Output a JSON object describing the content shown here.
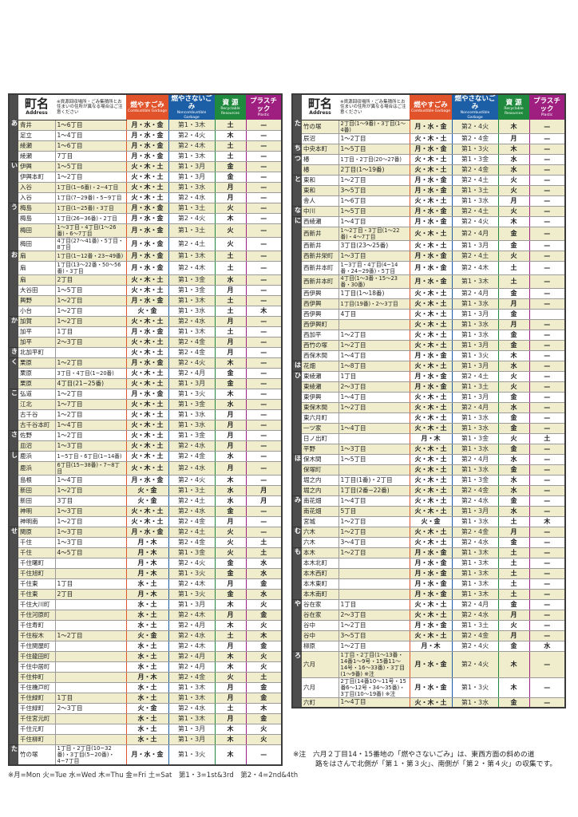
{
  "header": {
    "name_jp": "町名",
    "name_en": "Address",
    "note": "※資源回収場所・ごみ集積所とお住まいの住所が異なる場合はご注意ください",
    "combustible_jp": "燃やすごみ",
    "combustible_en": "Combustible Garbage",
    "noncombustible_jp": "燃やさないごみ",
    "noncombustible_en": "Noncombustible Garbage",
    "recyclable_jp": "資 源",
    "recyclable_en": "Recyclable Resources",
    "plastic_jp": "プラスチック",
    "plastic_en": "Plastic"
  },
  "colors": {
    "combustible": "#e0532b",
    "noncombustible": "#1c5fa6",
    "recyclable": "#1f8a3d",
    "plastic": "#9e1f80",
    "row_highlight": "#efedcb",
    "section_bar": "#4d4d4d"
  },
  "columns": [
    "kana",
    "name",
    "address",
    "combustible",
    "noncombustible",
    "recyclable",
    "plastic"
  ],
  "left_table": [
    [
      "あ",
      "青井",
      "1～6丁目",
      "月・水・金",
      "第1・3木",
      "土",
      "—"
    ],
    [
      "",
      "足立",
      "1～4丁目",
      "月・水・金",
      "第2・4火",
      "木",
      "—"
    ],
    [
      "",
      "綾瀬",
      "1～6丁目",
      "月・水・金",
      "第2・4木",
      "土",
      "—"
    ],
    [
      "",
      "綾瀬",
      "7丁目",
      "月・水・金",
      "第1・3木",
      "土",
      "—"
    ],
    [
      "い",
      "伊興",
      "1～5丁目",
      "火・木・土",
      "第1・3月",
      "金",
      "—"
    ],
    [
      "",
      "伊興本町",
      "1～2丁目",
      "火・木・土",
      "第1・3月",
      "金",
      "—"
    ],
    [
      "",
      "入谷",
      "1丁目(1~6番)・2~4丁目",
      "火・木・土",
      "第1・3水",
      "月",
      "—"
    ],
    [
      "",
      "入谷",
      "1丁目(7~29番)・5~9丁目",
      "火・木・土",
      "第2・4水",
      "月",
      "—"
    ],
    [
      "う",
      "梅島",
      "1丁目(1~25番)・3丁目",
      "月・水・金",
      "第1・3土",
      "火",
      "—"
    ],
    [
      "",
      "梅島",
      "1丁目(26~36番)・2丁目",
      "月・水・金",
      "第2・4火",
      "木",
      "—"
    ],
    [
      "",
      "梅田",
      "1～3丁目・4丁目(1～26番)・6～7丁目",
      "月・水・金",
      "第1・3土",
      "火",
      "—"
    ],
    [
      "",
      "梅田",
      "4丁目(27～41番)・5丁目・8丁目",
      "月・水・金",
      "第2・4土",
      "火",
      "—"
    ],
    [
      "お",
      "扇",
      "1丁目(1~12番・23~49番)",
      "月・水・金",
      "第1・3木",
      "土",
      "—"
    ],
    [
      "",
      "扇",
      "1丁目(13～22番・50～56番)・3丁目",
      "月・水・金",
      "第2・4木",
      "土",
      "—"
    ],
    [
      "",
      "扇",
      "2丁目",
      "火・木・土",
      "第1・3金",
      "水",
      "—"
    ],
    [
      "",
      "大谷田",
      "1～5丁目",
      "火・木・土",
      "第1・3金",
      "月",
      "—"
    ],
    [
      "",
      "興野",
      "1～2丁目",
      "月・水・金",
      "第1・3木",
      "土",
      "—"
    ],
    [
      "",
      "小台",
      "1～2丁目",
      "火・金",
      "第1・3水",
      "土",
      "木"
    ],
    [
      "か",
      "加賀",
      "1～2丁目",
      "火・木・土",
      "第2・4水",
      "月",
      "—"
    ],
    [
      "",
      "加平",
      "1丁目",
      "月・水・金",
      "第1・3木",
      "土",
      "—"
    ],
    [
      "",
      "加平",
      "2～3丁目",
      "火・木・土",
      "第2・4金",
      "月",
      "—"
    ],
    [
      "き",
      "北加平町",
      "",
      "火・木・土",
      "第2・4金",
      "月",
      "—"
    ],
    [
      "く",
      "栗原",
      "1～2丁目",
      "月・水・金",
      "第2・4火",
      "木",
      "—"
    ],
    [
      "",
      "栗原",
      "3丁目・4丁目(1~20番)",
      "火・木・土",
      "第2・4月",
      "金",
      "—"
    ],
    [
      "",
      "栗原",
      "4丁目(21~25番)",
      "火・木・土",
      "第1・3月",
      "金",
      "—"
    ],
    [
      "こ",
      "弘道",
      "1～2丁目",
      "月・水・金",
      "第1・3火",
      "木",
      "—"
    ],
    [
      "",
      "江北",
      "1～7丁目",
      "火・木・土",
      "第1・3金",
      "水",
      "—"
    ],
    [
      "",
      "古千谷",
      "1～2丁目",
      "火・木・土",
      "第1・3水",
      "月",
      "—"
    ],
    [
      "",
      "古千谷本町",
      "1～4丁目",
      "火・木・土",
      "第1・3水",
      "月",
      "—"
    ],
    [
      "さ",
      "佐野",
      "1～2丁目",
      "火・木・土",
      "第1・3金",
      "月",
      "—"
    ],
    [
      "",
      "皿沼",
      "1～3丁目",
      "火・木・土",
      "第2・4水",
      "月",
      "—"
    ],
    [
      "し",
      "鹿浜",
      "1~5丁目・6丁目(1~14番)",
      "火・木・土",
      "第2・4金",
      "水",
      "—"
    ],
    [
      "",
      "鹿浜",
      "6丁目(15~38番)・7~8丁目",
      "火・木・土",
      "第2・4水",
      "月",
      "—"
    ],
    [
      "",
      "島根",
      "1～4丁目",
      "月・水・金",
      "第2・4火",
      "木",
      "—"
    ],
    [
      "",
      "新田",
      "1～2丁目",
      "火・金",
      "第1・3土",
      "水",
      "月"
    ],
    [
      "",
      "新田",
      "3丁目",
      "火・金",
      "第2・4土",
      "水",
      "月"
    ],
    [
      "",
      "神明",
      "1～3丁目",
      "火・木・土",
      "第2・4水",
      "金",
      "—"
    ],
    [
      "",
      "神明南",
      "1～2丁目",
      "火・木・土",
      "第2・4金",
      "月",
      "—"
    ],
    [
      "せ",
      "関原",
      "1～3丁目",
      "月・水・金",
      "第2・4土",
      "火",
      "—"
    ],
    [
      "",
      "千住",
      "1～3丁目",
      "月・木",
      "第2・4金",
      "火",
      "土"
    ],
    [
      "",
      "千住",
      "4～5丁目",
      "月・木",
      "第1・3金",
      "火",
      "土"
    ],
    [
      "",
      "千住曙町",
      "",
      "月・木",
      "第2・4火",
      "金",
      "水"
    ],
    [
      "",
      "千住旭町",
      "",
      "月・木",
      "第1・3火",
      "金",
      "水"
    ],
    [
      "",
      "千住東",
      "1丁目",
      "水・土",
      "第2・4木",
      "月",
      "金"
    ],
    [
      "",
      "千住東",
      "2丁目",
      "月・木",
      "第1・3火",
      "金",
      "水"
    ],
    [
      "",
      "千住大川町",
      "",
      "水・土",
      "第1・3月",
      "木",
      "火"
    ],
    [
      "",
      "千住河原町",
      "",
      "水・土",
      "第2・4木",
      "月",
      "金"
    ],
    [
      "",
      "千住寿町",
      "",
      "水・土",
      "第2・4月",
      "木",
      "火"
    ],
    [
      "",
      "千住桜木",
      "1～2丁目",
      "火・金",
      "第2・4水",
      "土",
      "木"
    ],
    [
      "",
      "千住関屋町",
      "",
      "水・土",
      "第2・4木",
      "月",
      "金"
    ],
    [
      "",
      "千住龍田町",
      "",
      "水・土",
      "第2・4月",
      "木",
      "火"
    ],
    [
      "",
      "千住中居町",
      "",
      "水・土",
      "第2・4月",
      "木",
      "火"
    ],
    [
      "",
      "千住仲町",
      "",
      "月・木",
      "第2・4金",
      "火",
      "土"
    ],
    [
      "",
      "千住橋戸町",
      "",
      "水・土",
      "第1・3木",
      "月",
      "金"
    ],
    [
      "",
      "千住緑町",
      "1丁目",
      "水・土",
      "第1・3木",
      "月",
      "金"
    ],
    [
      "",
      "千住緑町",
      "2～3丁目",
      "火・金",
      "第2・4水",
      "土",
      "木"
    ],
    [
      "",
      "千住宮元町",
      "",
      "水・土",
      "第1・3木",
      "月",
      "金"
    ],
    [
      "",
      "千住元町",
      "",
      "水・土",
      "第1・3月",
      "木",
      "火"
    ],
    [
      "",
      "千住柳町",
      "",
      "水・土",
      "第1・3月",
      "木",
      "火"
    ],
    [
      "た",
      "竹の塚",
      "1丁目・2丁目(10~32番)・3丁目(5~20番)・4~7丁目",
      "月・水・金",
      "第1・3火",
      "木",
      "—"
    ]
  ],
  "right_table": [
    [
      "た",
      "竹の塚",
      "2丁目(1～9番)・3丁目(1～4番)",
      "月・水・金",
      "第2・4火",
      "木",
      "—"
    ],
    [
      "",
      "辰沼",
      "1～2丁目",
      "火・木・土",
      "第2・4金",
      "月",
      "—"
    ],
    [
      "ち",
      "中央本町",
      "1～5丁目",
      "月・水・金",
      "第1・3火",
      "木",
      "—"
    ],
    [
      "つ",
      "椿",
      "1丁目・2丁目(20～27番)",
      "火・木・土",
      "第1・3金",
      "水",
      "—"
    ],
    [
      "",
      "椿",
      "2丁目(1～19番)",
      "火・木・土",
      "第2・4金",
      "水",
      "—"
    ],
    [
      "と",
      "東和",
      "1～2丁目",
      "月・水・金",
      "第2・4土",
      "火",
      "—"
    ],
    [
      "",
      "東和",
      "3～5丁目",
      "月・水・金",
      "第1・3土",
      "火",
      "—"
    ],
    [
      "",
      "舎人",
      "1～6丁目",
      "火・木・土",
      "第1・3水",
      "月",
      "—"
    ],
    [
      "な",
      "中川",
      "1～5丁目",
      "月・水・金",
      "第2・4土",
      "火",
      "—"
    ],
    [
      "に",
      "西綾瀬",
      "1～4丁目",
      "月・水・金",
      "第2・4火",
      "木",
      "—"
    ],
    [
      "",
      "西新井",
      "1～2丁目・3丁目(1～22番)・4～7丁目",
      "火・木・土",
      "第2・4月",
      "金",
      "—"
    ],
    [
      "",
      "西新井",
      "3丁目(23～25番)",
      "火・木・土",
      "第1・3月",
      "金",
      "—"
    ],
    [
      "",
      "西新井栄町",
      "1～3丁目",
      "月・水・金",
      "第2・4土",
      "火",
      "—"
    ],
    [
      "",
      "西新井本町",
      "1~3丁目・4丁目(4~14番・24~29番)・5丁目",
      "月・水・金",
      "第2・4木",
      "土",
      "—"
    ],
    [
      "",
      "西新井本町",
      "4丁目(1～3番・15～23番・30番)",
      "月・水・金",
      "第1・3木",
      "土",
      "—"
    ],
    [
      "",
      "西伊興",
      "1丁目(1～18番)",
      "火・木・土",
      "第2・4月",
      "金",
      "—"
    ],
    [
      "",
      "西伊興",
      "1丁目(19番)・2～3丁目",
      "火・木・土",
      "第1・3水",
      "月",
      "—"
    ],
    [
      "",
      "西伊興",
      "4丁目",
      "火・木・土",
      "第1・3月",
      "金",
      ""
    ],
    [
      "",
      "西伊興町",
      "",
      "火・木・土",
      "第1・3水",
      "月",
      "—"
    ],
    [
      "",
      "西加平",
      "1～2丁目",
      "火・木・土",
      "第1・3水",
      "金",
      "—"
    ],
    [
      "",
      "西竹の塚",
      "1～2丁目",
      "火・木・土",
      "第1・3月",
      "金",
      "—"
    ],
    [
      "",
      "西保木間",
      "1～4丁目",
      "月・水・金",
      "第1・3火",
      "木",
      "—"
    ],
    [
      "は",
      "花畑",
      "1～8丁目",
      "火・木・土",
      "第1・3月",
      "水",
      "—"
    ],
    [
      "ひ",
      "東綾瀬",
      "1丁目",
      "月・水・金",
      "第2・4土",
      "火",
      "—"
    ],
    [
      "",
      "東綾瀬",
      "2～3丁目",
      "月・水・金",
      "第1・3土",
      "火",
      "—"
    ],
    [
      "",
      "東伊興",
      "1～4丁目",
      "火・木・土",
      "第1・3月",
      "金",
      "—"
    ],
    [
      "",
      "東保木間",
      "1～2丁目",
      "火・木・土",
      "第2・4月",
      "水",
      "—"
    ],
    [
      "",
      "東六月町",
      "",
      "火・木・土",
      "第1・3水",
      "金",
      "—"
    ],
    [
      "",
      "一ツ家",
      "1～4丁目",
      "火・木・土",
      "第1・3水",
      "金",
      "—"
    ],
    [
      "",
      "日ノ出町",
      "",
      "月・木",
      "第1・3金",
      "火",
      "土"
    ],
    [
      "",
      "平野",
      "1～3丁目",
      "火・木・土",
      "第1・3水",
      "金",
      "—"
    ],
    [
      "ほ",
      "保木間",
      "1～5丁目",
      "火・木・土",
      "第2・4月",
      "水",
      "—"
    ],
    [
      "",
      "保塚町",
      "",
      "火・木・土",
      "第1・3水",
      "金",
      "—"
    ],
    [
      "",
      "堀之内",
      "1丁目(1番)・2丁目",
      "火・木・土",
      "第1・3金",
      "水",
      "—"
    ],
    [
      "",
      "堀之内",
      "1丁目(2番~22番)",
      "火・木・土",
      "第2・4金",
      "水",
      "—"
    ],
    [
      "み",
      "南花畑",
      "1～4丁目",
      "火・木・土",
      "第2・4水",
      "金",
      "—"
    ],
    [
      "",
      "南花畑",
      "5丁目",
      "火・木・土",
      "第1・3月",
      "水",
      "—"
    ],
    [
      "",
      "宮城",
      "1～2丁目",
      "火・金",
      "第1・3水",
      "土",
      "木"
    ],
    [
      "む",
      "六木",
      "1～2丁目",
      "火・木・土",
      "第2・4金",
      "月",
      "—"
    ],
    [
      "",
      "六木",
      "3～4丁目",
      "火・木・土",
      "第2・4水",
      "金",
      "—"
    ],
    [
      "も",
      "本木",
      "1～2丁目",
      "月・水・金",
      "第1・3木",
      "土",
      "—"
    ],
    [
      "",
      "本木北町",
      "",
      "月・水・金",
      "第1・3木",
      "土",
      "—"
    ],
    [
      "",
      "本木西町",
      "",
      "月・水・金",
      "第1・3木",
      "土",
      "—"
    ],
    [
      "",
      "本木東町",
      "",
      "月・水・金",
      "第1・3木",
      "土",
      "—"
    ],
    [
      "",
      "本木南町",
      "",
      "月・水・金",
      "第1・3木",
      "土",
      "—"
    ],
    [
      "や",
      "谷在家",
      "1丁目",
      "火・木・土",
      "第2・4月",
      "金",
      "—"
    ],
    [
      "",
      "谷在家",
      "2～3丁目",
      "火・木・土",
      "第2・4水",
      "月",
      "—"
    ],
    [
      "",
      "谷中",
      "1～2丁目",
      "月・水・金",
      "第1・3土",
      "火",
      "—"
    ],
    [
      "",
      "谷中",
      "3～5丁目",
      "火・木・土",
      "第2・4金",
      "月",
      "—"
    ],
    [
      "",
      "柳原",
      "1～2丁目",
      "月・木",
      "第2・4火",
      "金",
      "水"
    ],
    [
      "ろ",
      "六月",
      "1丁目・2丁目(1～13番・14番1～9号・15番11～14号・16～33番)・3丁目(1～9番) ※注",
      "月・水・金",
      "第2・4火",
      "木",
      "—"
    ],
    [
      "",
      "六月",
      "2丁目(14番10～11号・15番6～12号・34～35番)・3丁目(10～19番) ※注",
      "月・水・金",
      "第1・3火",
      "木",
      "—"
    ],
    [
      "",
      "六町",
      "1～4丁目",
      "火・木・土",
      "第1・3水",
      "金",
      "—"
    ]
  ],
  "footnotes": {
    "legend": "※月=Mon 火=Tue 水=Wed 木=Thu 金=Fri 土=Sat　第1・3=1st&3rd　第2・4=2nd&4th",
    "note_line1": "※注　六月２丁目14・15番地の「燃やさないごみ」は、東西方面の斜めの道",
    "note_line2": "路をはさんで北側が「第１・第３火」、南側が「第２・第４火」の収集です。"
  }
}
